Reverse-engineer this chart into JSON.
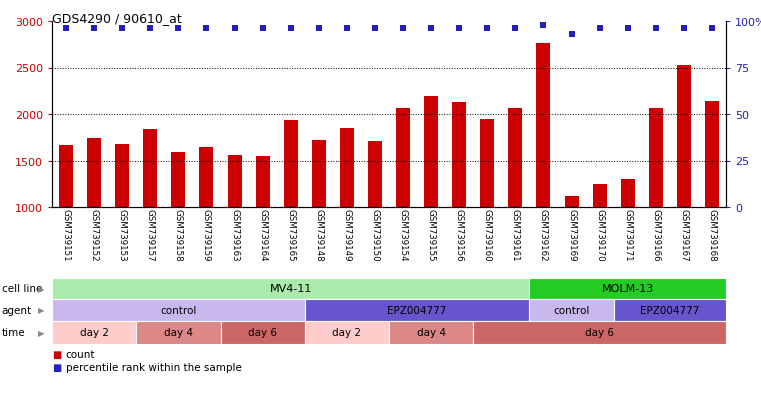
{
  "title": "GDS4290 / 90610_at",
  "samples": [
    "GSM739151",
    "GSM739152",
    "GSM739153",
    "GSM739157",
    "GSM739158",
    "GSM739159",
    "GSM739163",
    "GSM739164",
    "GSM739165",
    "GSM739148",
    "GSM739149",
    "GSM739150",
    "GSM739154",
    "GSM739155",
    "GSM739156",
    "GSM739160",
    "GSM739161",
    "GSM739162",
    "GSM739169",
    "GSM739170",
    "GSM739171",
    "GSM739166",
    "GSM739167",
    "GSM739168"
  ],
  "counts": [
    1670,
    1740,
    1680,
    1840,
    1590,
    1650,
    1560,
    1550,
    1940,
    1720,
    1850,
    1710,
    2060,
    2190,
    2130,
    1950,
    2060,
    2760,
    1120,
    1250,
    1300,
    2060,
    2530,
    2140
  ],
  "percentile_ranks": [
    96,
    96,
    96,
    96,
    96,
    96,
    96,
    96,
    96,
    96,
    96,
    96,
    96,
    96,
    96,
    96,
    96,
    98,
    93,
    96,
    96,
    96,
    96,
    96
  ],
  "bar_color": "#cc0000",
  "dot_color": "#2222bb",
  "ylim_left": [
    1000,
    3000
  ],
  "ylim_right": [
    0,
    100
  ],
  "yticks_left": [
    1000,
    1500,
    2000,
    2500,
    3000
  ],
  "yticks_right": [
    0,
    25,
    50,
    75,
    100
  ],
  "grid_values": [
    1500,
    2000,
    2500
  ],
  "cell_line_mv411": {
    "label": "MV4-11",
    "start": 0,
    "end": 17,
    "color": "#aaeaaa"
  },
  "cell_line_molm13": {
    "label": "MOLM-13",
    "start": 17,
    "end": 24,
    "color": "#22cc22"
  },
  "agent_segments": [
    {
      "label": "control",
      "start": 0,
      "end": 9,
      "color": "#c8b8ee"
    },
    {
      "label": "EPZ004777",
      "start": 9,
      "end": 17,
      "color": "#6655cc"
    },
    {
      "label": "control",
      "start": 17,
      "end": 20,
      "color": "#c8b8ee"
    },
    {
      "label": "EPZ004777",
      "start": 20,
      "end": 24,
      "color": "#6655cc"
    }
  ],
  "time_segments": [
    {
      "label": "day 2",
      "start": 0,
      "end": 3,
      "color": "#ffcccc"
    },
    {
      "label": "day 4",
      "start": 3,
      "end": 6,
      "color": "#dd8888"
    },
    {
      "label": "day 6",
      "start": 6,
      "end": 9,
      "color": "#cc6666"
    },
    {
      "label": "day 2",
      "start": 9,
      "end": 12,
      "color": "#ffcccc"
    },
    {
      "label": "day 4",
      "start": 12,
      "end": 15,
      "color": "#dd8888"
    },
    {
      "label": "day 6",
      "start": 15,
      "end": 24,
      "color": "#cc6666"
    }
  ],
  "legend_count_color": "#cc0000",
  "legend_dot_color": "#2222bb",
  "xlabel_bg": "#cccccc",
  "background_color": "#ffffff"
}
